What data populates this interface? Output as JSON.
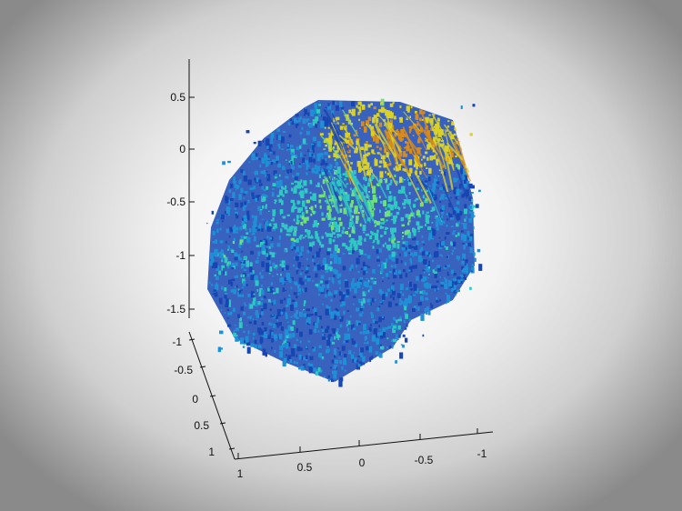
{
  "chart_data": {
    "type": "scatter",
    "dimensions": 3,
    "title": "",
    "xlabel": "",
    "ylabel": "",
    "zlabel": "",
    "grid": false,
    "colormap": [
      "#0b1f7a",
      "#1746b4",
      "#1f8fd6",
      "#2ec9c0",
      "#6fe07a",
      "#d9d02a",
      "#d88a1a"
    ],
    "x_ticks": [
      "1",
      "0.5",
      "0",
      "-0.5",
      "-1"
    ],
    "y_ticks": [
      "-1",
      "-0.5",
      "0",
      "0.5",
      "1"
    ],
    "z_ticks": [
      "0.5",
      "0",
      "-0.5",
      "-1",
      "-1.5"
    ],
    "xlim": [
      -1,
      1
    ],
    "ylim": [
      -1,
      1
    ],
    "zlim": [
      -1.5,
      0.5
    ],
    "notes_visible": ""
  }
}
